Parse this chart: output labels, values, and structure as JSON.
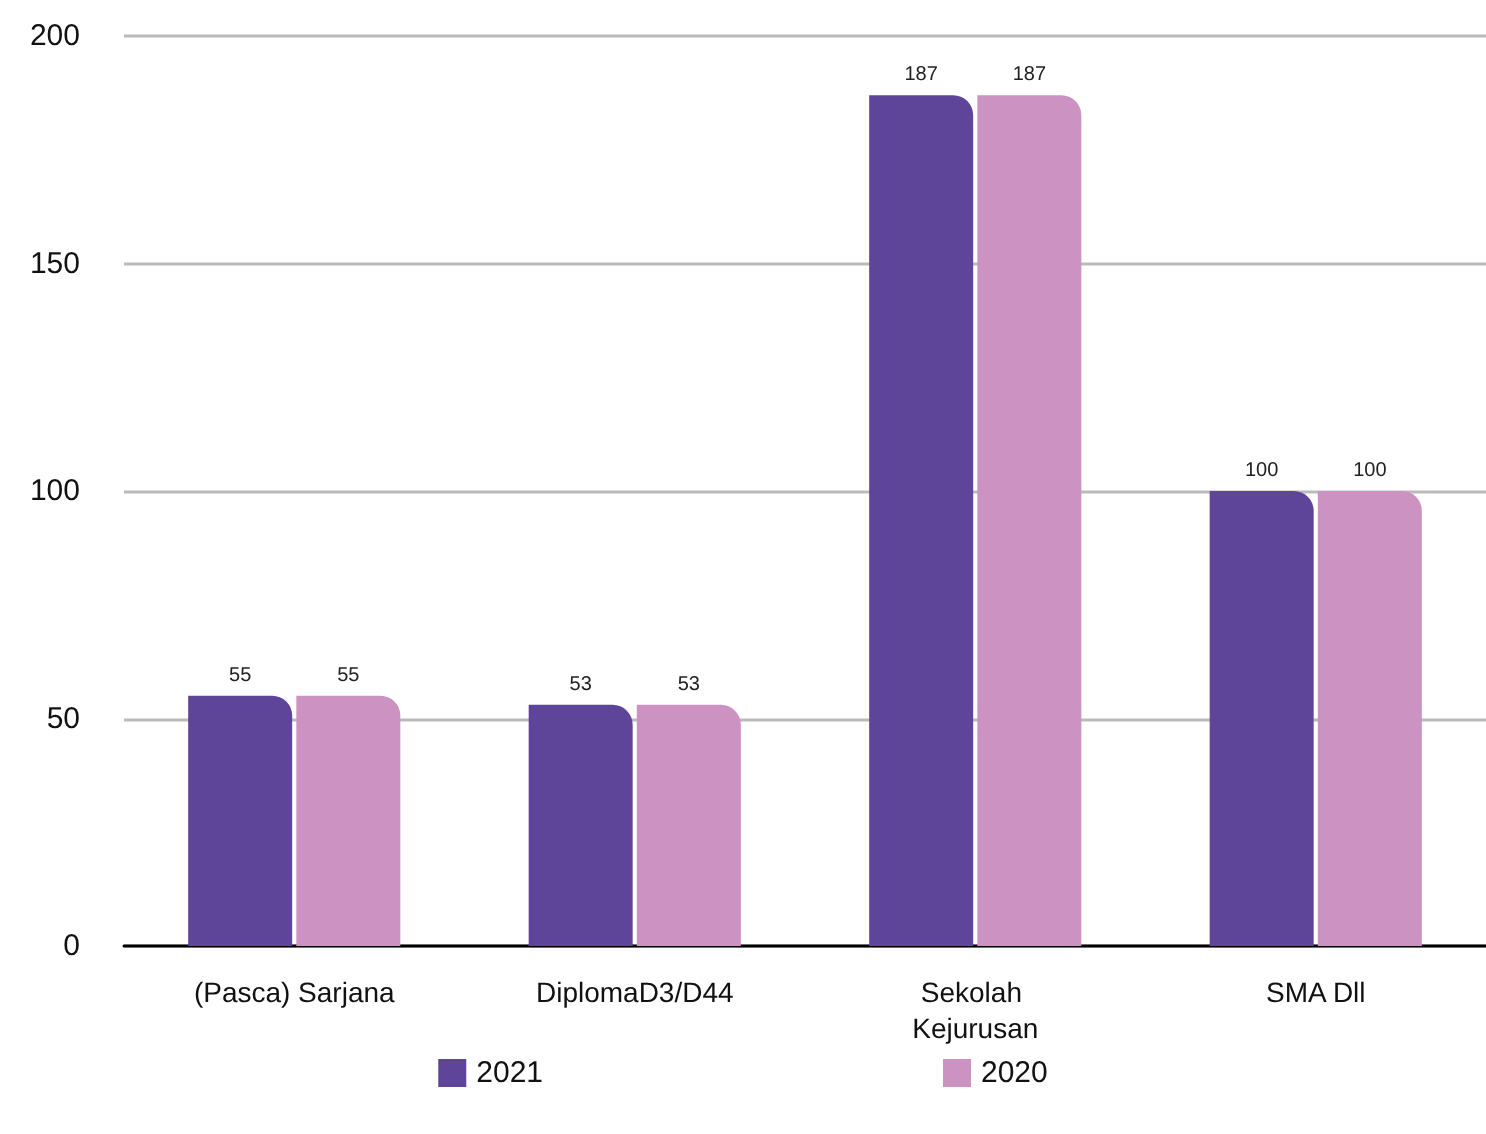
{
  "chart_data": {
    "type": "bar",
    "categories": [
      "(Pasca) Sarjana",
      "DiplomaD3/D44",
      "Sekolah Kejurusan",
      "SMA Dll"
    ],
    "series": [
      {
        "name": "2021",
        "color": "#5e4599",
        "values": [
          55,
          53,
          187,
          100
        ]
      },
      {
        "name": "2020",
        "color": "#cc92c2",
        "values": [
          55,
          53,
          187,
          100
        ]
      }
    ],
    "ylim": [
      0,
      200
    ],
    "yticks": [
      0,
      50,
      100,
      150,
      200
    ],
    "grid": "y",
    "legend": "bottom",
    "data_labels": true
  }
}
